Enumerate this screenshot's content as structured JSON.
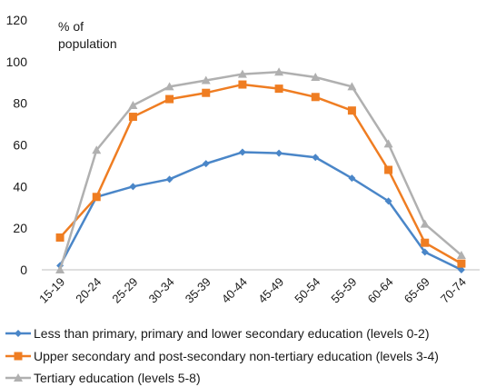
{
  "chart_data": {
    "type": "line",
    "ylabel_line1": "% of",
    "ylabel_line2": "population",
    "ylim": [
      0,
      120
    ],
    "yticks": [
      0,
      20,
      40,
      60,
      80,
      100,
      120
    ],
    "grid": false,
    "legend_position": "bottom",
    "categories": [
      "15-19",
      "20-24",
      "25-29",
      "30-34",
      "35-39",
      "40-44",
      "45-49",
      "50-54",
      "55-59",
      "60-64",
      "65-69",
      "70-74"
    ],
    "series": [
      {
        "name": "Less than primary, primary and lower secondary education (levels 0-2)",
        "color": "#4a86c8",
        "marker": "diamond",
        "values": [
          2,
          35,
          40,
          43.5,
          51,
          56.5,
          56,
          54,
          44,
          33,
          8.5,
          0
        ]
      },
      {
        "name": "Upper secondary and post-secondary non-tertiary education (levels 3-4)",
        "color": "#ef7d22",
        "marker": "square",
        "values": [
          15.5,
          35,
          73.5,
          82,
          85,
          89,
          87,
          83,
          76.5,
          48,
          13,
          3
        ]
      },
      {
        "name": "Tertiary education (levels 5-8)",
        "color": "#b0b0b0",
        "marker": "triangle",
        "values": [
          0,
          57.5,
          79,
          88,
          91,
          94,
          95,
          92.5,
          88,
          60.5,
          22,
          7
        ]
      }
    ]
  }
}
